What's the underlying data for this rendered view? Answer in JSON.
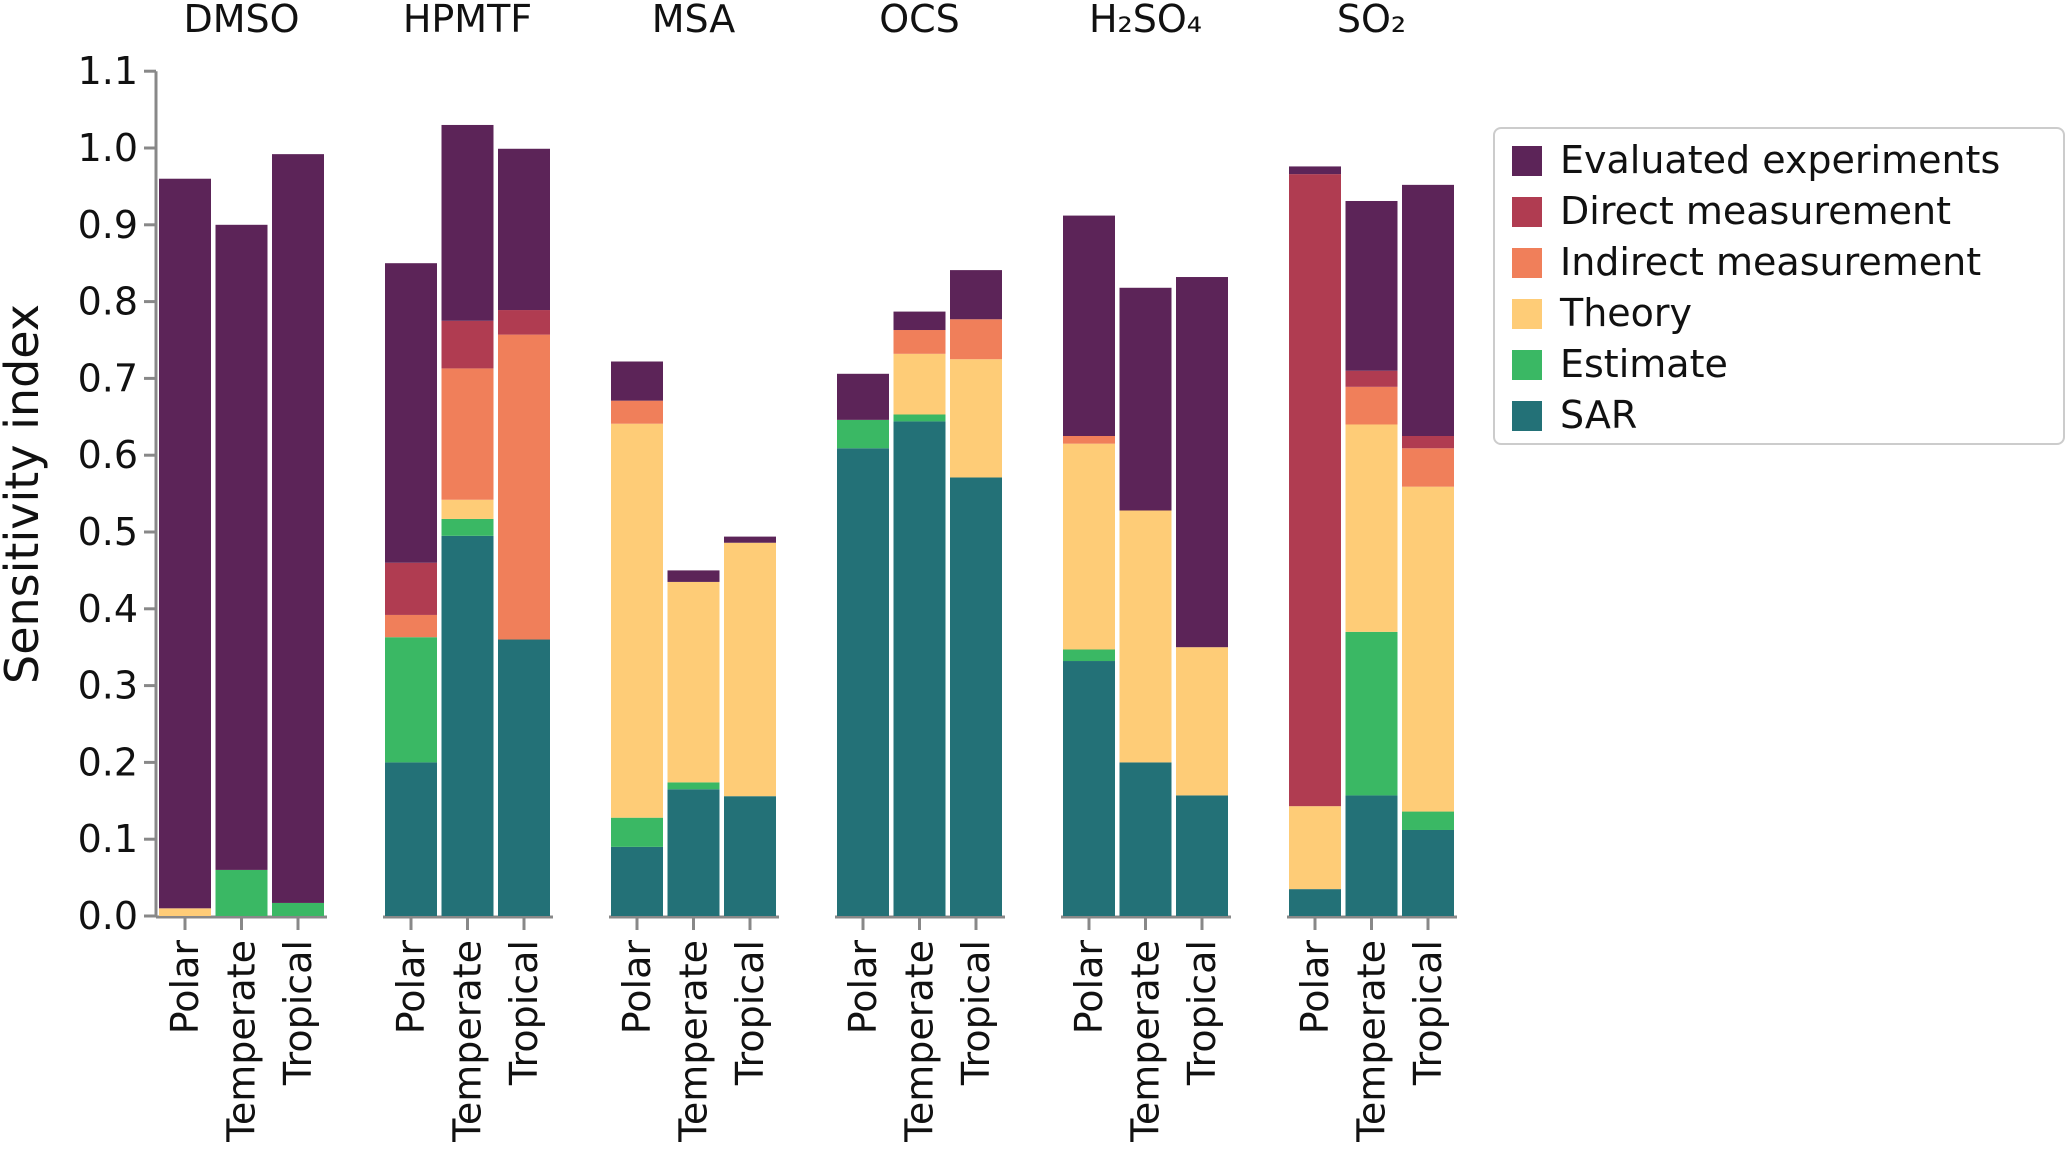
{
  "chart_data": {
    "type": "bar",
    "stacked": true,
    "ylabel": "Sensitivity index",
    "ylim": [
      0,
      1.1
    ],
    "yticks": [
      "0.0",
      "0.1",
      "0.2",
      "0.3",
      "0.4",
      "0.5",
      "0.6",
      "0.7",
      "0.8",
      "0.9",
      "1.0",
      "1.1"
    ],
    "grid": false,
    "legend_position": "right",
    "groups": [
      "DMSO",
      "HPMTF",
      "MSA",
      "OCS",
      "H₂SO₄",
      "SO₂"
    ],
    "categories": [
      "Polar",
      "Temperate",
      "Tropical"
    ],
    "series": [
      {
        "name": "SAR",
        "color": "#237177",
        "values": [
          [
            0,
            0,
            0
          ],
          [
            0.2,
            0.495,
            0.36
          ],
          [
            0.09,
            0.165,
            0.156
          ],
          [
            0.609,
            0.644,
            0.571
          ],
          [
            0.332,
            0.2,
            0.157
          ],
          [
            0.035,
            0.157,
            0.112
          ]
        ]
      },
      {
        "name": "Estimate",
        "color": "#3ab864",
        "values": [
          [
            0,
            0.06,
            0.017
          ],
          [
            0.163,
            0.022,
            0
          ],
          [
            0.038,
            0.009,
            0
          ],
          [
            0.037,
            0.009,
            0
          ],
          [
            0.015,
            0,
            0
          ],
          [
            0,
            0.213,
            0.024
          ]
        ]
      },
      {
        "name": "Theory",
        "color": "#fecc77",
        "values": [
          [
            0.01,
            0,
            0
          ],
          [
            0,
            0.025,
            0
          ],
          [
            0.513,
            0.261,
            0.33
          ],
          [
            0,
            0.079,
            0.154
          ],
          [
            0.268,
            0.328,
            0.193
          ],
          [
            0.108,
            0.27,
            0.423
          ]
        ]
      },
      {
        "name": "Indirect measurement",
        "color": "#f07f5a",
        "values": [
          [
            0,
            0,
            0
          ],
          [
            0.029,
            0.171,
            0.397
          ],
          [
            0.03,
            0,
            0
          ],
          [
            0,
            0.031,
            0.052
          ],
          [
            0.01,
            0,
            0
          ],
          [
            0,
            0.049,
            0.05
          ]
        ]
      },
      {
        "name": "Direct measurement",
        "color": "#b03c51",
        "values": [
          [
            0,
            0,
            0
          ],
          [
            0.068,
            0.062,
            0.032
          ],
          [
            0,
            0,
            0
          ],
          [
            0,
            0,
            0
          ],
          [
            0,
            0,
            0
          ],
          [
            0.823,
            0.021,
            0.016
          ]
        ]
      },
      {
        "name": "Evaluated experiments",
        "color": "#5c2458",
        "values": [
          [
            0.95,
            0.84,
            0.975
          ],
          [
            0.39,
            0.255,
            0.21
          ],
          [
            0.051,
            0.015,
            0.008
          ],
          [
            0.06,
            0.024,
            0.064
          ],
          [
            0.287,
            0.29,
            0.482
          ],
          [
            0.01,
            0.221,
            0.327
          ]
        ]
      }
    ],
    "legend_order": [
      "Evaluated experiments",
      "Direct measurement",
      "Indirect measurement",
      "Theory",
      "Estimate",
      "SAR"
    ]
  }
}
